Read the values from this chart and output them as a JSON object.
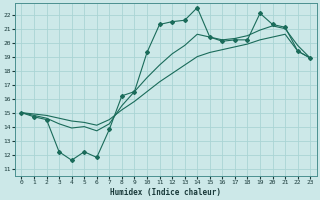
{
  "title": "",
  "xlabel": "Humidex (Indice chaleur)",
  "bg_color": "#cce8e8",
  "grid_color": "#aad4d4",
  "line_color": "#1a6b5a",
  "xlim": [
    -0.5,
    23.5
  ],
  "ylim": [
    10.5,
    22.8
  ],
  "xticks": [
    0,
    1,
    2,
    3,
    4,
    5,
    6,
    7,
    8,
    9,
    10,
    11,
    12,
    13,
    14,
    15,
    16,
    17,
    18,
    19,
    20,
    21,
    22,
    23
  ],
  "yticks": [
    11,
    12,
    13,
    14,
    15,
    16,
    17,
    18,
    19,
    20,
    21,
    22
  ],
  "line1_x": [
    0,
    1,
    2,
    3,
    4,
    5,
    6,
    7,
    8,
    9,
    10,
    11,
    12,
    13,
    14,
    15,
    16,
    17,
    18,
    19,
    20,
    21,
    22,
    23
  ],
  "line1_y": [
    15.0,
    14.7,
    14.5,
    12.2,
    11.6,
    12.2,
    11.8,
    13.8,
    16.2,
    16.5,
    19.3,
    21.3,
    21.5,
    21.6,
    22.5,
    20.4,
    20.1,
    20.2,
    20.2,
    22.1,
    21.3,
    21.1,
    19.4,
    18.9
  ],
  "line2_x": [
    0,
    1,
    2,
    3,
    4,
    5,
    6,
    7,
    8,
    9,
    10,
    11,
    12,
    13,
    14,
    15,
    16,
    17,
    18,
    19,
    20,
    21,
    22,
    23
  ],
  "line2_y": [
    15.0,
    14.9,
    14.8,
    14.6,
    14.4,
    14.3,
    14.1,
    14.5,
    15.2,
    15.8,
    16.5,
    17.2,
    17.8,
    18.4,
    19.0,
    19.3,
    19.5,
    19.7,
    19.9,
    20.2,
    20.4,
    20.6,
    19.4,
    18.9
  ],
  "line3_x": [
    0,
    1,
    2,
    3,
    4,
    5,
    6,
    7,
    8,
    9,
    10,
    11,
    12,
    13,
    14,
    15,
    16,
    17,
    18,
    19,
    20,
    21,
    22,
    23
  ],
  "line3_y": [
    15.0,
    14.8,
    14.6,
    14.2,
    13.9,
    14.0,
    13.7,
    14.2,
    15.5,
    16.5,
    17.5,
    18.4,
    19.2,
    19.8,
    20.6,
    20.4,
    20.2,
    20.3,
    20.5,
    20.9,
    21.2,
    21.0,
    19.8,
    18.9
  ]
}
